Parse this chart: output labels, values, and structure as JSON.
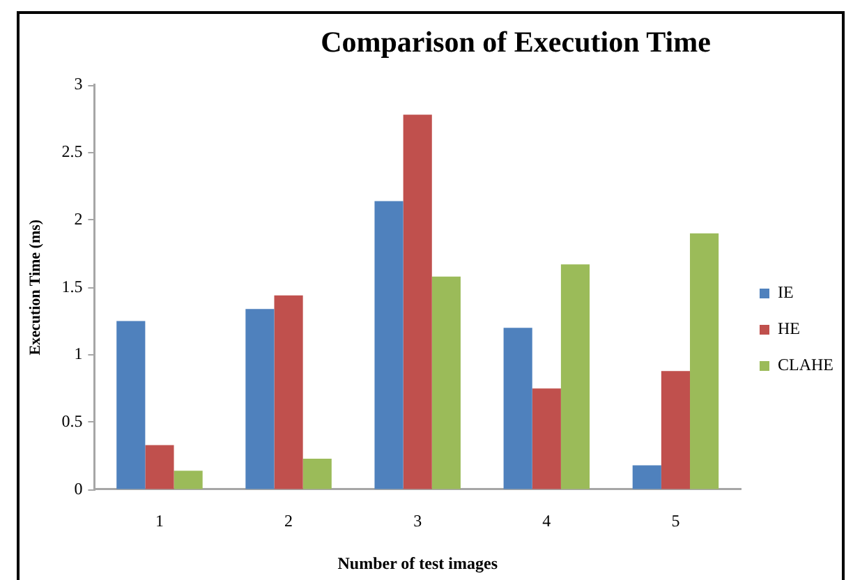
{
  "chart_data": {
    "type": "bar",
    "title": "Comparison of Execution Time",
    "xlabel": "Number of test images",
    "ylabel": "Execution Time (ms)",
    "categories": [
      "1",
      "2",
      "3",
      "4",
      "5"
    ],
    "series": [
      {
        "name": "IE",
        "color": "#4f81bd",
        "values": [
          1.25,
          1.34,
          2.14,
          1.2,
          0.18
        ]
      },
      {
        "name": "HE",
        "color": "#c0504d",
        "values": [
          0.33,
          1.44,
          2.78,
          0.75,
          0.88
        ]
      },
      {
        "name": "CLAHE",
        "color": "#9bbb59",
        "values": [
          0.14,
          0.23,
          1.58,
          1.67,
          1.9
        ]
      }
    ],
    "ylim": [
      0,
      3
    ],
    "yticks": [
      0,
      0.5,
      1,
      1.5,
      2,
      2.5,
      3
    ],
    "grid": false,
    "legend": "right"
  }
}
